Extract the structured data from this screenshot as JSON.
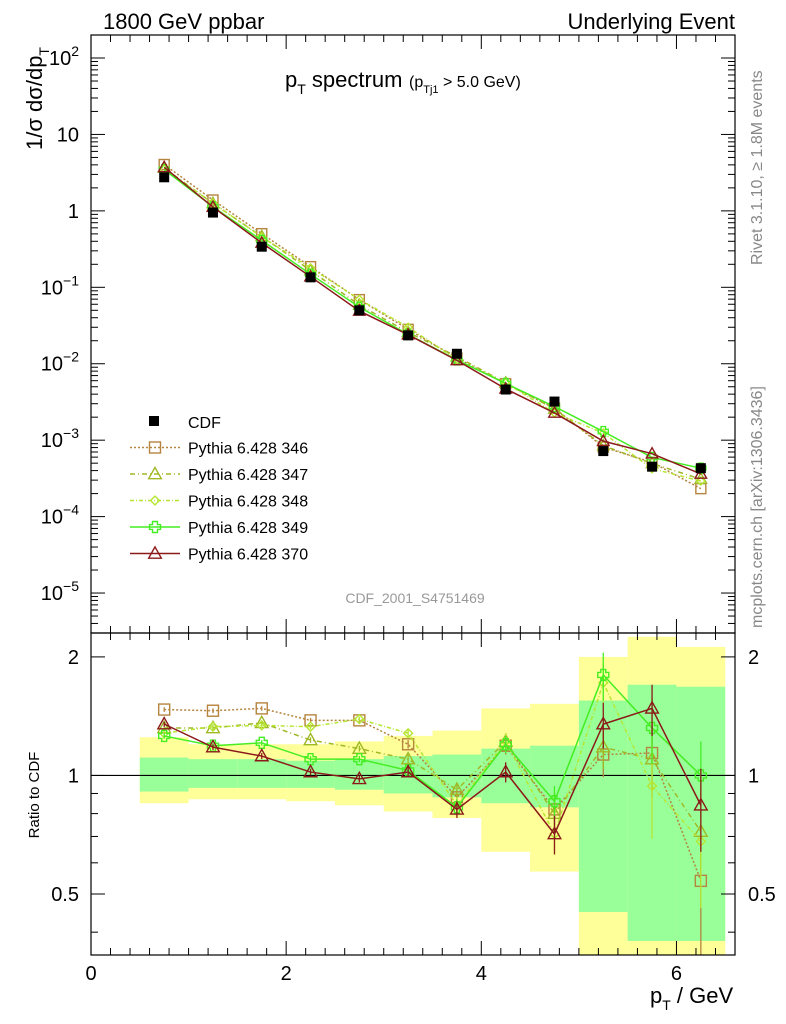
{
  "header": {
    "left": "1800 GeV ppbar",
    "right": "Underlying Event"
  },
  "side": {
    "rivet": "Rivet 3.1.10, ≥ 1.8M events",
    "mcplots": "mcplots.cern.ch [arXiv:1306.3436]"
  },
  "analysis_label": "CDF_2001_S4751469",
  "chart_data": {
    "type": "scatter",
    "title": "pT spectrum (pTj1 > 5.0 GeV)",
    "xlabel": "pT / GeV",
    "ylabel": "1/σ dσ/dpT",
    "ratio_ylabel": "Ratio to CDF",
    "xlim": [
      0,
      6.6
    ],
    "ylim_log": [
      3e-06,
      200
    ],
    "ratio_ylim": [
      0.35,
      2.3
    ],
    "x_ticks": [
      "0",
      "2",
      "4",
      "6"
    ],
    "y_ticks": [
      "10^-5",
      "10^-4",
      "10^-3",
      "10^-2",
      "10^-1",
      "1",
      "10",
      "10^2"
    ],
    "ratio_ticks": [
      "0.5",
      "1",
      "2"
    ],
    "x": [
      0.75,
      1.25,
      1.75,
      2.25,
      2.75,
      3.25,
      3.75,
      4.25,
      4.75,
      5.25,
      5.75,
      6.25
    ],
    "bin_edges": [
      0.5,
      1.0,
      1.5,
      2.0,
      2.5,
      3.0,
      3.5,
      4.0,
      4.5,
      5.0,
      5.5,
      6.0,
      6.5
    ],
    "data": {
      "name": "CDF",
      "values": [
        2.75,
        0.95,
        0.34,
        0.135,
        0.05,
        0.0235,
        0.0135,
        0.0046,
        0.0032,
        0.00072,
        0.00045,
        0.00043
      ],
      "band_inner_lo": [
        0.91,
        0.93,
        0.93,
        0.93,
        0.92,
        0.9,
        0.88,
        0.85,
        0.83,
        0.45,
        0.38,
        0.38
      ],
      "band_inner_hi": [
        1.11,
        1.1,
        1.1,
        1.09,
        1.1,
        1.12,
        1.13,
        1.17,
        1.19,
        1.55,
        1.7,
        1.68
      ],
      "band_outer_lo": [
        0.85,
        0.87,
        0.87,
        0.86,
        0.84,
        0.81,
        0.78,
        0.64,
        0.57,
        0.35,
        0.35,
        0.35
      ],
      "band_outer_hi": [
        1.25,
        1.2,
        1.2,
        1.2,
        1.22,
        1.26,
        1.3,
        1.48,
        1.52,
        2.0,
        2.25,
        2.12
      ]
    },
    "series": [
      {
        "name": "Pythia 6.428 346",
        "color": "#b5843e",
        "dash": "2,2",
        "marker": "square",
        "ratio": [
          1.47,
          1.46,
          1.48,
          1.38,
          1.38,
          1.2,
          0.88,
          1.19,
          0.82,
          1.13,
          1.14,
          0.54
        ],
        "ratio_err": [
          0.02,
          0.02,
          0.02,
          0.02,
          0.02,
          0.03,
          0.04,
          0.06,
          0.08,
          0.14,
          0.22,
          0.2
        ]
      },
      {
        "name": "Pythia 6.428 347",
        "color": "#9fb825",
        "dash": "5,3,1,3",
        "marker": "triangle",
        "ratio": [
          1.32,
          1.32,
          1.36,
          1.23,
          1.17,
          1.1,
          0.92,
          1.22,
          0.8,
          1.18,
          1.1,
          0.72
        ],
        "ratio_err": [
          0.02,
          0.02,
          0.02,
          0.02,
          0.02,
          0.03,
          0.04,
          0.06,
          0.08,
          0.14,
          0.22,
          0.2
        ]
      },
      {
        "name": "Pythia 6.428 348",
        "color": "#b6e632",
        "dash": "4,2,1,2",
        "marker": "diamond",
        "ratio": [
          1.28,
          1.33,
          1.34,
          1.33,
          1.39,
          1.28,
          0.84,
          1.22,
          0.71,
          1.72,
          0.94,
          0.68
        ],
        "ratio_err": [
          0.02,
          0.02,
          0.02,
          0.02,
          0.02,
          0.03,
          0.04,
          0.06,
          0.08,
          0.2,
          0.25,
          0.22
        ]
      },
      {
        "name": "Pythia 6.428 349",
        "color": "#44ee22",
        "dash": "",
        "marker": "plus",
        "ratio": [
          1.26,
          1.19,
          1.21,
          1.1,
          1.1,
          1.03,
          0.83,
          1.2,
          0.86,
          1.8,
          1.32,
          1.0
        ],
        "ratio_err": [
          0.02,
          0.02,
          0.02,
          0.02,
          0.02,
          0.03,
          0.04,
          0.06,
          0.08,
          0.25,
          0.25,
          0.22
        ]
      },
      {
        "name": "Pythia 6.428 370",
        "color": "#8b1a1a",
        "dash": "",
        "marker": "triangle",
        "ratio": [
          1.35,
          1.18,
          1.12,
          1.02,
          0.98,
          1.02,
          0.82,
          1.02,
          0.71,
          1.35,
          1.48,
          0.84
        ],
        "ratio_err": [
          0.02,
          0.02,
          0.02,
          0.02,
          0.02,
          0.03,
          0.04,
          0.06,
          0.08,
          0.18,
          0.22,
          0.2
        ]
      }
    ],
    "legend_position": "left, lower half of main panel",
    "grid": false
  }
}
